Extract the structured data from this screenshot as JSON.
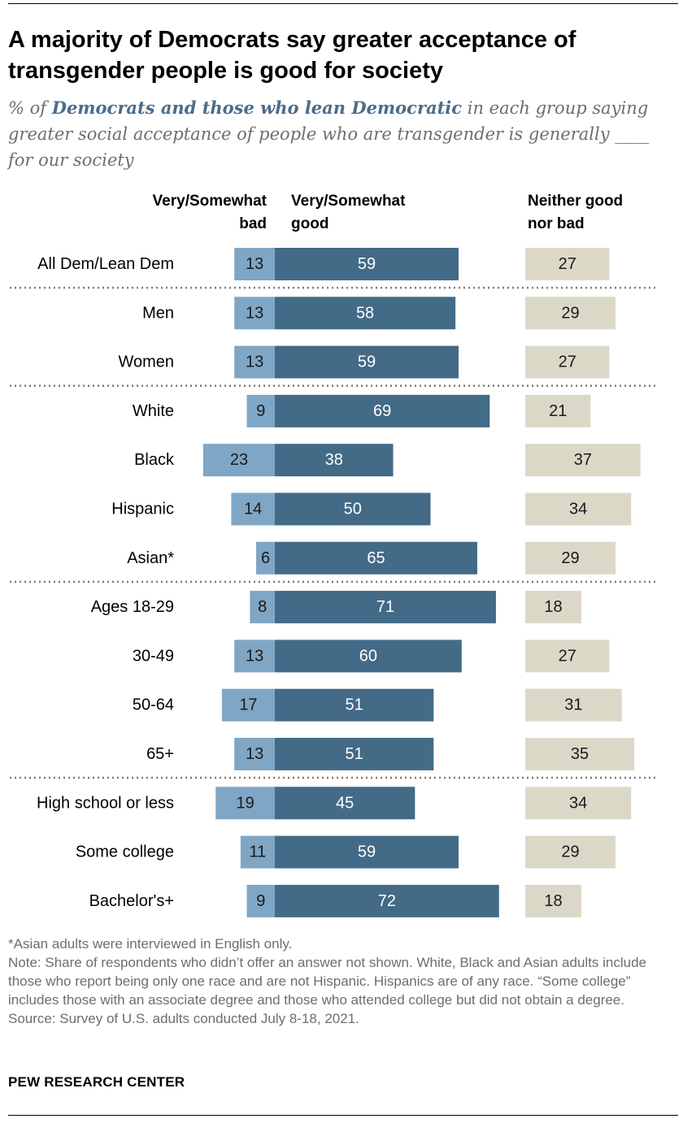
{
  "header": {
    "title": "A majority of Democrats say greater acceptance of transgender people is good for society",
    "subtitle_pre": "% of ",
    "subtitle_highlight": "Democrats and those who lean Democratic",
    "subtitle_post": " in each group saying greater social acceptance of people who are transgender is generally ____ for our society"
  },
  "columns": {
    "bad_line1": "Very/Somewhat",
    "bad_line2": "bad",
    "good_line1": "Very/Somewhat",
    "good_line2": "good",
    "neither_line1": "Neither good",
    "neither_line2": "nor bad"
  },
  "colors": {
    "bad": "#7fa6c5",
    "good": "#436a87",
    "neither": "#dcd8c8",
    "separator": "#7a7a7a"
  },
  "chart_data": {
    "type": "bar",
    "categories": [
      "All Dem/Lean Dem",
      "Men",
      "Women",
      "White",
      "Black",
      "Hispanic",
      "Asian*",
      "Ages 18-29",
      "30-49",
      "50-64",
      "65+",
      "High school or less",
      "Some college",
      "Bachelor's+"
    ],
    "series": [
      {
        "name": "Very/Somewhat bad",
        "values": [
          13,
          13,
          13,
          9,
          23,
          14,
          6,
          8,
          13,
          17,
          13,
          19,
          11,
          9
        ]
      },
      {
        "name": "Very/Somewhat good",
        "values": [
          59,
          58,
          59,
          69,
          38,
          50,
          65,
          71,
          60,
          51,
          51,
          45,
          59,
          72
        ]
      },
      {
        "name": "Neither good nor bad",
        "values": [
          27,
          29,
          27,
          21,
          37,
          34,
          29,
          18,
          27,
          31,
          35,
          34,
          29,
          18
        ]
      }
    ],
    "group_breaks_after": [
      0,
      2,
      6,
      10
    ]
  },
  "notes": {
    "asterisk": "*Asian adults were interviewed in English only.",
    "note": "Note: Share of respondents who didn’t offer an answer not shown. White, Black and Asian adults include those who report being only one race and are not Hispanic. Hispanics are of any race. “Some college” includes those with an associate degree and those who attended college but did not obtain a degree.",
    "source": "Source: Survey of U.S. adults conducted July 8-18, 2021."
  },
  "brand": "PEW RESEARCH CENTER"
}
